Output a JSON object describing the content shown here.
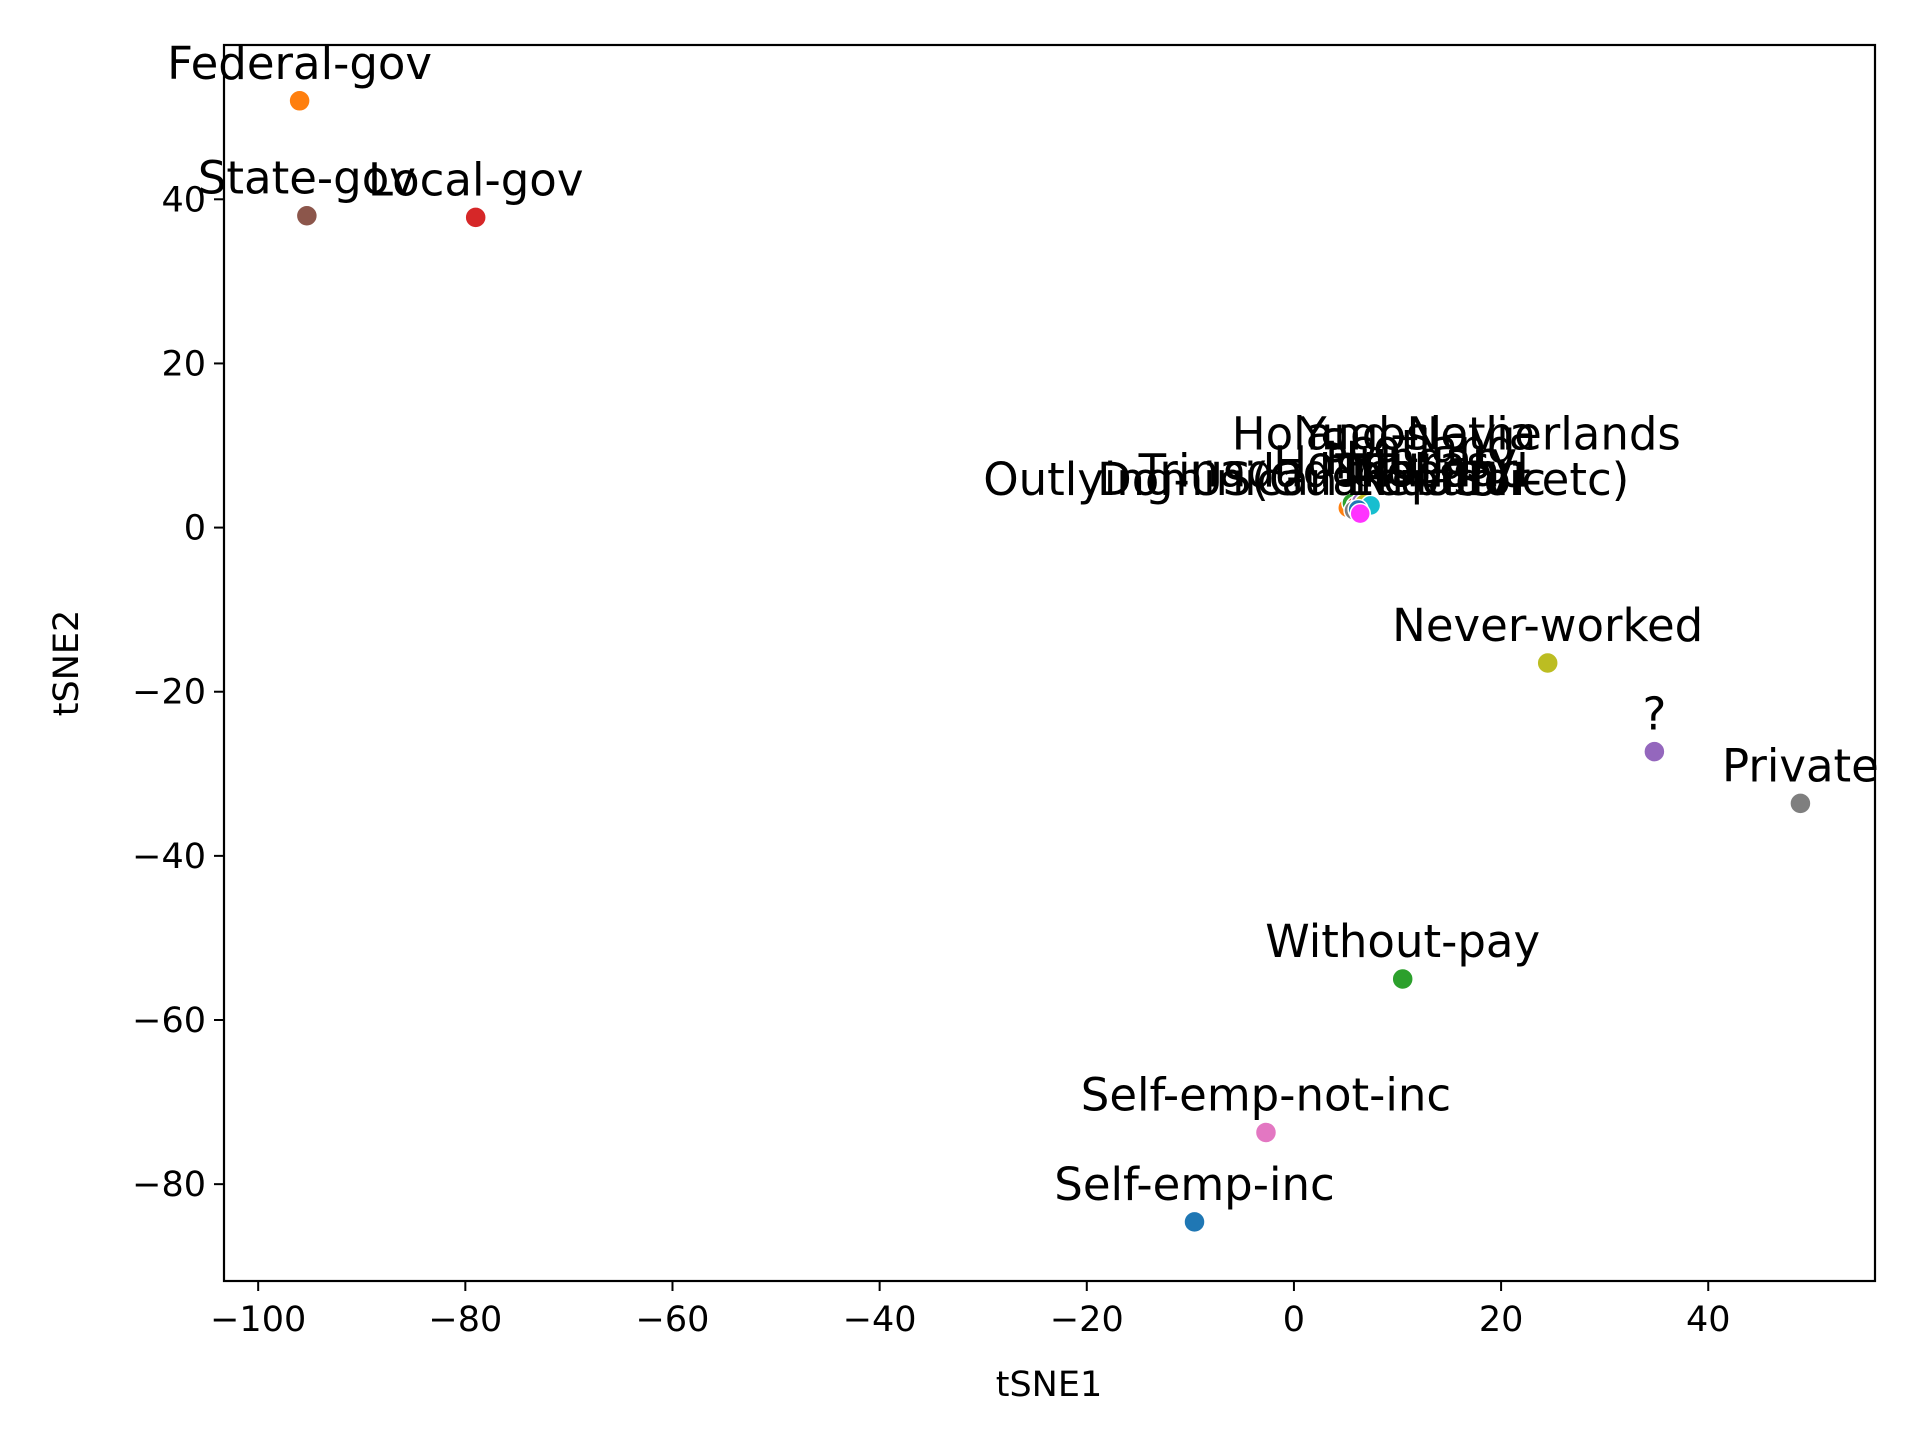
{
  "chart_data": {
    "type": "scatter",
    "title": "",
    "xlabel": "tSNE1",
    "ylabel": "tSNE2",
    "xlim": [
      -103.3,
      56.1
    ],
    "ylim": [
      -91.8,
      58.8
    ],
    "xticks": [
      -100,
      -80,
      -60,
      -40,
      -20,
      0,
      20,
      40
    ],
    "xtick_labels": [
      "−100",
      "−80",
      "−60",
      "−40",
      "−20",
      "0",
      "20",
      "40"
    ],
    "yticks": [
      -80,
      -60,
      -40,
      -20,
      0,
      20,
      40
    ],
    "ytick_labels": [
      "−80",
      "−60",
      "−40",
      "−20",
      "0",
      "20",
      "40"
    ],
    "grid": false,
    "points": [
      {
        "label": "Federal-gov",
        "x": -96.0,
        "y": 52.0,
        "color": "#ff7f0e"
      },
      {
        "label": "State-gov",
        "x": -95.3,
        "y": 38.0,
        "color": "#8c564b"
      },
      {
        "label": "Local-gov",
        "x": -79.0,
        "y": 37.8,
        "color": "#d62728"
      },
      {
        "label": "Never-worked",
        "x": 24.5,
        "y": -16.5,
        "color": "#bcbd22"
      },
      {
        "label": "?",
        "x": 34.8,
        "y": -27.3,
        "color": "#9467bd"
      },
      {
        "label": "Private",
        "x": 48.9,
        "y": -33.6,
        "color": "#7f7f7f"
      },
      {
        "label": "Without-pay",
        "x": 10.5,
        "y": -55.0,
        "color": "#2ca02c"
      },
      {
        "label": "Self-emp-not-inc",
        "x": -2.7,
        "y": -73.7,
        "color": "#e377c2"
      },
      {
        "label": "Self-emp-inc",
        "x": -9.6,
        "y": -84.6,
        "color": "#1f77b4"
      }
    ],
    "cluster_points": [
      {
        "x": 5.2,
        "y": 2.4,
        "color": "#ff7f0e"
      },
      {
        "x": 5.6,
        "y": 3.0,
        "color": "#2ca02c"
      },
      {
        "x": 6.0,
        "y": 2.6,
        "color": "#d62728"
      },
      {
        "x": 6.5,
        "y": 3.1,
        "color": "#9467bd"
      },
      {
        "x": 7.0,
        "y": 2.4,
        "color": "#8c564b"
      },
      {
        "x": 5.8,
        "y": 2.1,
        "color": "#7f7f7f"
      },
      {
        "x": 6.8,
        "y": 2.9,
        "color": "#bcbd22"
      },
      {
        "x": 7.4,
        "y": 2.7,
        "color": "#17becf"
      },
      {
        "x": 6.2,
        "y": 2.2,
        "color": "#1f77b4"
      },
      {
        "x": 6.4,
        "y": 1.7,
        "color": "#ff33ff"
      }
    ],
    "cluster_labels": [
      {
        "text": "Holand-Netherlands",
        "x": -6.0,
        "y": 9.5
      },
      {
        "text": "Outlying-US(Guam-USVI-etc)",
        "x": -30.0,
        "y": 4.0
      },
      {
        "text": "Dominican-Republic",
        "x": -19.0,
        "y": 4.0
      },
      {
        "text": "Trinadad&Tobago",
        "x": -15.0,
        "y": 5.0
      },
      {
        "text": "Yugoslavia",
        "x": 0.5,
        "y": 9.5
      },
      {
        "text": "Scotland",
        "x": 2.5,
        "y": 8.0
      },
      {
        "text": "Hungary",
        "x": 3.0,
        "y": 6.5
      },
      {
        "text": "Honduras",
        "x": -2.0,
        "y": 6.0
      },
      {
        "text": "Thailand",
        "x": 4.0,
        "y": 5.0
      },
      {
        "text": "Ecuador",
        "x": 5.0,
        "y": 4.0
      }
    ]
  }
}
